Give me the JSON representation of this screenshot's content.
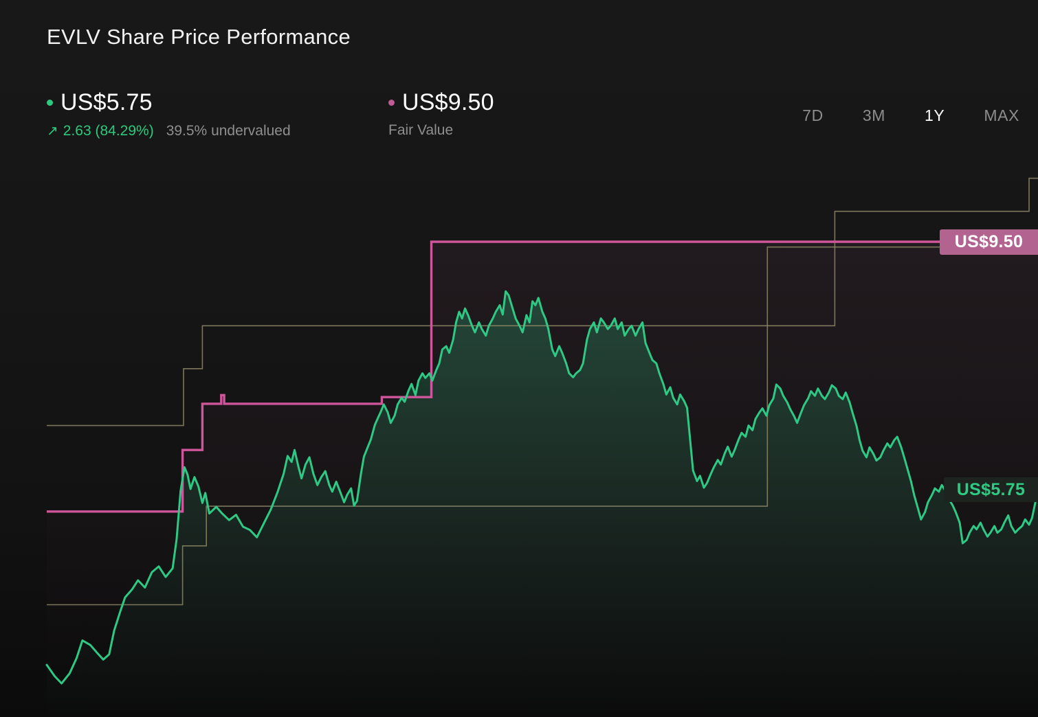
{
  "header": {
    "title": "EVLV Share Price Performance"
  },
  "legend": {
    "price": {
      "value": "US$5.75",
      "arrow_icon": "up-right-arrow",
      "change": "2.63 (84.29%)",
      "undervalued": "39.5% undervalued",
      "dot_color": "#2dc97e"
    },
    "fair_value": {
      "value": "US$9.50",
      "label": "Fair Value",
      "dot_color": "#c05c93"
    }
  },
  "range_selector": {
    "options": [
      {
        "label": "7D",
        "selected": false
      },
      {
        "label": "3M",
        "selected": false
      },
      {
        "label": "1Y",
        "selected": true
      },
      {
        "label": "MAX",
        "selected": false
      }
    ]
  },
  "colors": {
    "price_line": "#2fc986",
    "fair_value_line": "#d0569b",
    "band_line": "#8e8868",
    "background": "#161616",
    "fair_value_badge_bg": "#b2638f",
    "price_badge_text": "#2fcb83"
  },
  "chart_data": {
    "type": "line",
    "title": "EVLV Share Price Performance",
    "x_range": "1Y",
    "x_unit": "percent of time range (0 = one year ago, 100 = today)",
    "y_unit": "US$ per share",
    "ylim": [
      2.3,
      10.8
    ],
    "grid": false,
    "axes_hidden": true,
    "legend_position": "top-left",
    "series": [
      {
        "id": "price",
        "name": "Share Price",
        "color": "#2fc986",
        "style": "jagged line with area fill",
        "current_value": "US$5.75",
        "points": [
          [
            0,
            3.1
          ],
          [
            0.8,
            2.93
          ],
          [
            1.5,
            2.82
          ],
          [
            2.3,
            2.97
          ],
          [
            3.0,
            3.2
          ],
          [
            3.6,
            3.47
          ],
          [
            4.4,
            3.4
          ],
          [
            5.1,
            3.28
          ],
          [
            5.7,
            3.18
          ],
          [
            6.3,
            3.26
          ],
          [
            6.8,
            3.62
          ],
          [
            7.4,
            3.9
          ],
          [
            7.9,
            4.12
          ],
          [
            8.6,
            4.24
          ],
          [
            9.2,
            4.38
          ],
          [
            9.9,
            4.27
          ],
          [
            10.6,
            4.5
          ],
          [
            11.3,
            4.59
          ],
          [
            12.0,
            4.43
          ],
          [
            12.7,
            4.56
          ],
          [
            13.1,
            5.0
          ],
          [
            13.5,
            5.73
          ],
          [
            13.9,
            6.09
          ],
          [
            14.2,
            5.98
          ],
          [
            14.5,
            5.76
          ],
          [
            14.9,
            5.94
          ],
          [
            15.3,
            5.8
          ],
          [
            15.7,
            5.55
          ],
          [
            16.0,
            5.7
          ],
          [
            16.4,
            5.39
          ],
          [
            17.1,
            5.49
          ],
          [
            17.7,
            5.39
          ],
          [
            18.4,
            5.29
          ],
          [
            19.1,
            5.37
          ],
          [
            19.8,
            5.19
          ],
          [
            20.5,
            5.14
          ],
          [
            21.2,
            5.03
          ],
          [
            21.9,
            5.24
          ],
          [
            22.6,
            5.45
          ],
          [
            23.3,
            5.72
          ],
          [
            23.9,
            5.99
          ],
          [
            24.3,
            6.26
          ],
          [
            24.7,
            6.17
          ],
          [
            25.0,
            6.35
          ],
          [
            25.4,
            6.09
          ],
          [
            25.7,
            5.92
          ],
          [
            26.1,
            6.13
          ],
          [
            26.5,
            6.24
          ],
          [
            26.9,
            5.99
          ],
          [
            27.3,
            5.82
          ],
          [
            27.7,
            5.94
          ],
          [
            28.1,
            6.03
          ],
          [
            28.5,
            5.82
          ],
          [
            28.8,
            5.72
          ],
          [
            29.2,
            5.87
          ],
          [
            29.6,
            5.72
          ],
          [
            30.0,
            5.56
          ],
          [
            30.3,
            5.67
          ],
          [
            30.7,
            5.77
          ],
          [
            31.0,
            5.51
          ],
          [
            31.3,
            5.58
          ],
          [
            31.7,
            5.99
          ],
          [
            32.0,
            6.25
          ],
          [
            32.4,
            6.4
          ],
          [
            32.7,
            6.51
          ],
          [
            33.1,
            6.73
          ],
          [
            33.4,
            6.83
          ],
          [
            33.7,
            6.93
          ],
          [
            34.0,
            7.04
          ],
          [
            34.4,
            6.92
          ],
          [
            34.7,
            6.76
          ],
          [
            35.1,
            6.87
          ],
          [
            35.4,
            7.04
          ],
          [
            35.8,
            7.14
          ],
          [
            36.1,
            7.08
          ],
          [
            36.5,
            7.25
          ],
          [
            36.8,
            7.35
          ],
          [
            37.2,
            7.18
          ],
          [
            37.5,
            7.4
          ],
          [
            37.9,
            7.51
          ],
          [
            38.2,
            7.44
          ],
          [
            38.6,
            7.51
          ],
          [
            38.9,
            7.4
          ],
          [
            39.3,
            7.56
          ],
          [
            39.6,
            7.66
          ],
          [
            39.9,
            7.87
          ],
          [
            40.3,
            7.92
          ],
          [
            40.6,
            7.82
          ],
          [
            41.0,
            8.02
          ],
          [
            41.3,
            8.28
          ],
          [
            41.6,
            8.44
          ],
          [
            41.9,
            8.34
          ],
          [
            42.2,
            8.49
          ],
          [
            42.5,
            8.39
          ],
          [
            42.9,
            8.23
          ],
          [
            43.2,
            8.13
          ],
          [
            43.6,
            8.28
          ],
          [
            43.9,
            8.18
          ],
          [
            44.3,
            8.08
          ],
          [
            44.6,
            8.23
          ],
          [
            45.0,
            8.34
          ],
          [
            45.3,
            8.44
          ],
          [
            45.7,
            8.54
          ],
          [
            46.0,
            8.4
          ],
          [
            46.3,
            8.75
          ],
          [
            46.6,
            8.69
          ],
          [
            47.0,
            8.49
          ],
          [
            47.3,
            8.34
          ],
          [
            47.7,
            8.23
          ],
          [
            48.0,
            8.13
          ],
          [
            48.4,
            8.39
          ],
          [
            48.7,
            8.28
          ],
          [
            49.0,
            8.6
          ],
          [
            49.3,
            8.54
          ],
          [
            49.6,
            8.65
          ],
          [
            50.0,
            8.44
          ],
          [
            50.3,
            8.34
          ],
          [
            50.6,
            8.18
          ],
          [
            51.0,
            7.87
          ],
          [
            51.3,
            7.77
          ],
          [
            51.7,
            7.92
          ],
          [
            52.0,
            7.82
          ],
          [
            52.4,
            7.66
          ],
          [
            52.7,
            7.51
          ],
          [
            53.1,
            7.45
          ],
          [
            53.4,
            7.51
          ],
          [
            53.8,
            7.56
          ],
          [
            54.1,
            7.66
          ],
          [
            54.5,
            8.02
          ],
          [
            54.8,
            8.18
          ],
          [
            55.2,
            8.28
          ],
          [
            55.5,
            8.13
          ],
          [
            55.9,
            8.34
          ],
          [
            56.2,
            8.28
          ],
          [
            56.6,
            8.18
          ],
          [
            56.9,
            8.23
          ],
          [
            57.3,
            8.34
          ],
          [
            57.6,
            8.18
          ],
          [
            58.0,
            8.28
          ],
          [
            58.3,
            8.08
          ],
          [
            58.7,
            8.18
          ],
          [
            59.0,
            8.23
          ],
          [
            59.4,
            8.08
          ],
          [
            59.7,
            8.18
          ],
          [
            60.1,
            8.28
          ],
          [
            60.4,
            7.97
          ],
          [
            60.8,
            7.82
          ],
          [
            61.1,
            7.71
          ],
          [
            61.5,
            7.66
          ],
          [
            61.8,
            7.51
          ],
          [
            62.2,
            7.35
          ],
          [
            62.5,
            7.19
          ],
          [
            62.9,
            7.3
          ],
          [
            63.2,
            7.14
          ],
          [
            63.6,
            7.04
          ],
          [
            63.9,
            7.19
          ],
          [
            64.3,
            7.09
          ],
          [
            64.6,
            6.99
          ],
          [
            64.9,
            6.51
          ],
          [
            65.2,
            6.04
          ],
          [
            65.6,
            5.88
          ],
          [
            65.9,
            5.96
          ],
          [
            66.3,
            5.78
          ],
          [
            66.6,
            5.85
          ],
          [
            67.0,
            5.99
          ],
          [
            67.3,
            6.09
          ],
          [
            67.7,
            6.2
          ],
          [
            68.0,
            6.13
          ],
          [
            68.4,
            6.3
          ],
          [
            68.7,
            6.4
          ],
          [
            69.1,
            6.25
          ],
          [
            69.4,
            6.35
          ],
          [
            69.8,
            6.51
          ],
          [
            70.1,
            6.61
          ],
          [
            70.5,
            6.55
          ],
          [
            70.8,
            6.72
          ],
          [
            71.2,
            6.65
          ],
          [
            71.5,
            6.82
          ],
          [
            71.9,
            6.92
          ],
          [
            72.2,
            6.98
          ],
          [
            72.6,
            6.87
          ],
          [
            72.9,
            7.03
          ],
          [
            73.3,
            7.13
          ],
          [
            73.6,
            7.34
          ],
          [
            74.0,
            7.28
          ],
          [
            74.3,
            7.17
          ],
          [
            74.7,
            7.07
          ],
          [
            75.0,
            6.97
          ],
          [
            75.4,
            6.86
          ],
          [
            75.7,
            6.76
          ],
          [
            76.1,
            6.92
          ],
          [
            76.4,
            7.03
          ],
          [
            76.8,
            7.13
          ],
          [
            77.1,
            7.24
          ],
          [
            77.5,
            7.17
          ],
          [
            77.8,
            7.28
          ],
          [
            78.2,
            7.17
          ],
          [
            78.5,
            7.12
          ],
          [
            78.9,
            7.22
          ],
          [
            79.2,
            7.33
          ],
          [
            79.6,
            7.28
          ],
          [
            79.9,
            7.17
          ],
          [
            80.3,
            7.12
          ],
          [
            80.6,
            7.22
          ],
          [
            81.0,
            7.07
          ],
          [
            81.3,
            6.91
          ],
          [
            81.7,
            6.71
          ],
          [
            82.0,
            6.5
          ],
          [
            82.3,
            6.34
          ],
          [
            82.7,
            6.24
          ],
          [
            83.0,
            6.39
          ],
          [
            83.4,
            6.29
          ],
          [
            83.7,
            6.19
          ],
          [
            84.1,
            6.24
          ],
          [
            84.4,
            6.34
          ],
          [
            84.8,
            6.45
          ],
          [
            85.1,
            6.39
          ],
          [
            85.5,
            6.5
          ],
          [
            85.8,
            6.55
          ],
          [
            86.2,
            6.39
          ],
          [
            86.5,
            6.24
          ],
          [
            86.8,
            6.08
          ],
          [
            87.2,
            5.87
          ],
          [
            87.5,
            5.67
          ],
          [
            87.9,
            5.46
          ],
          [
            88.2,
            5.3
          ],
          [
            88.6,
            5.41
          ],
          [
            88.9,
            5.56
          ],
          [
            89.3,
            5.67
          ],
          [
            89.6,
            5.77
          ],
          [
            90.0,
            5.72
          ],
          [
            90.3,
            5.82
          ],
          [
            90.7,
            5.72
          ],
          [
            91.0,
            5.61
          ],
          [
            91.4,
            5.51
          ],
          [
            91.7,
            5.41
          ],
          [
            92.1,
            5.25
          ],
          [
            92.4,
            4.94
          ],
          [
            92.8,
            4.99
          ],
          [
            93.1,
            5.1
          ],
          [
            93.5,
            5.2
          ],
          [
            93.8,
            5.15
          ],
          [
            94.2,
            5.25
          ],
          [
            94.5,
            5.15
          ],
          [
            94.9,
            5.04
          ],
          [
            95.2,
            5.1
          ],
          [
            95.6,
            5.2
          ],
          [
            95.9,
            5.1
          ],
          [
            96.3,
            5.15
          ],
          [
            96.6,
            5.25
          ],
          [
            97.0,
            5.36
          ],
          [
            97.3,
            5.2
          ],
          [
            97.7,
            5.1
          ],
          [
            98.0,
            5.15
          ],
          [
            98.4,
            5.2
          ],
          [
            98.7,
            5.3
          ],
          [
            99.1,
            5.22
          ],
          [
            99.4,
            5.32
          ],
          [
            100,
            5.75
          ]
        ]
      },
      {
        "id": "fair_value",
        "name": "Fair Value",
        "color": "#d0569b",
        "style": "step line",
        "current_value": "US$9.50",
        "points": [
          [
            0,
            5.42
          ],
          [
            13.7,
            5.42
          ],
          [
            13.7,
            6.35
          ],
          [
            15.7,
            6.35
          ],
          [
            15.7,
            7.05
          ],
          [
            17.6,
            7.05
          ],
          [
            17.6,
            7.18
          ],
          [
            17.9,
            7.18
          ],
          [
            17.9,
            7.05
          ],
          [
            33.8,
            7.05
          ],
          [
            33.8,
            7.15
          ],
          [
            38.8,
            7.15
          ],
          [
            38.8,
            9.5
          ],
          [
            100,
            9.5
          ]
        ]
      },
      {
        "id": "band_upper",
        "name": "Upper step band (unlabeled)",
        "color": "#8e8868",
        "style": "thin step line",
        "points": [
          [
            0,
            6.72
          ],
          [
            13.8,
            6.72
          ],
          [
            13.8,
            7.58
          ],
          [
            15.7,
            7.58
          ],
          [
            15.7,
            8.23
          ],
          [
            79.5,
            8.23
          ],
          [
            79.5,
            9.96
          ],
          [
            99.1,
            9.96
          ],
          [
            99.1,
            10.46
          ],
          [
            100,
            10.46
          ]
        ]
      },
      {
        "id": "band_lower",
        "name": "Lower step band (unlabeled)",
        "color": "#8e8868",
        "style": "thin step line",
        "points": [
          [
            0,
            4.01
          ],
          [
            13.7,
            4.01
          ],
          [
            13.7,
            4.9
          ],
          [
            16.1,
            4.9
          ],
          [
            16.1,
            5.5
          ],
          [
            72.7,
            5.5
          ],
          [
            72.7,
            9.42
          ],
          [
            100,
            9.42
          ]
        ]
      }
    ],
    "annotations": [
      {
        "text": "US$9.50",
        "series": "fair_value",
        "position": "right-edge"
      },
      {
        "text": "US$5.75",
        "series": "price",
        "position": "right-edge"
      }
    ]
  }
}
